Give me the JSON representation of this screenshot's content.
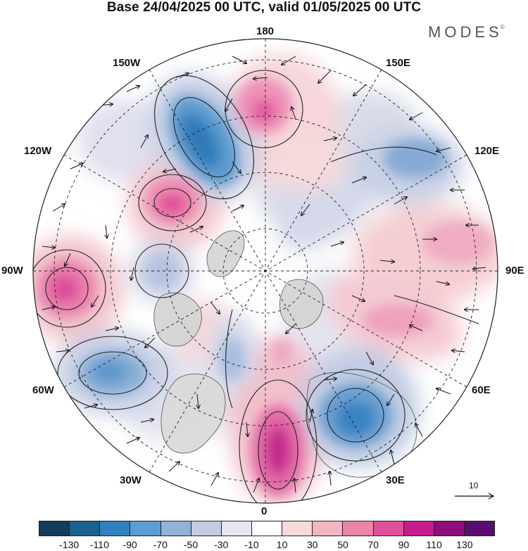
{
  "title": "Base 24/04/2025 00 UTC, valid 01/05/2025 00 UTC",
  "brand": "MODES",
  "brand_mark": "©",
  "longitude_labels": {
    "top": "180",
    "bottom": "0",
    "left": "90W",
    "right": "90E",
    "upper_left_1": "150W",
    "upper_left_2": "120W",
    "upper_right_1": "150E",
    "upper_right_2": "120E",
    "lower_left_1": "60W",
    "lower_left_2": "30W",
    "lower_right_1": "60E",
    "lower_right_2": "30E"
  },
  "reference_vector": {
    "value": "10"
  },
  "colorbar": {
    "colors": [
      "#143c5a",
      "#19628f",
      "#2f82bf",
      "#5a9dd0",
      "#92b3d8",
      "#c4cce4",
      "#e6e6f0",
      "#ffffff",
      "#f7dada",
      "#f2b6c2",
      "#ec84aa",
      "#e0509a",
      "#c41c8a",
      "#8e0d7a",
      "#5a0d6e"
    ],
    "ticks": [
      "-130",
      "-110",
      "-90",
      "-70",
      "-50",
      "-30",
      "-10",
      "10",
      "30",
      "50",
      "70",
      "90",
      "110",
      "130"
    ]
  }
}
